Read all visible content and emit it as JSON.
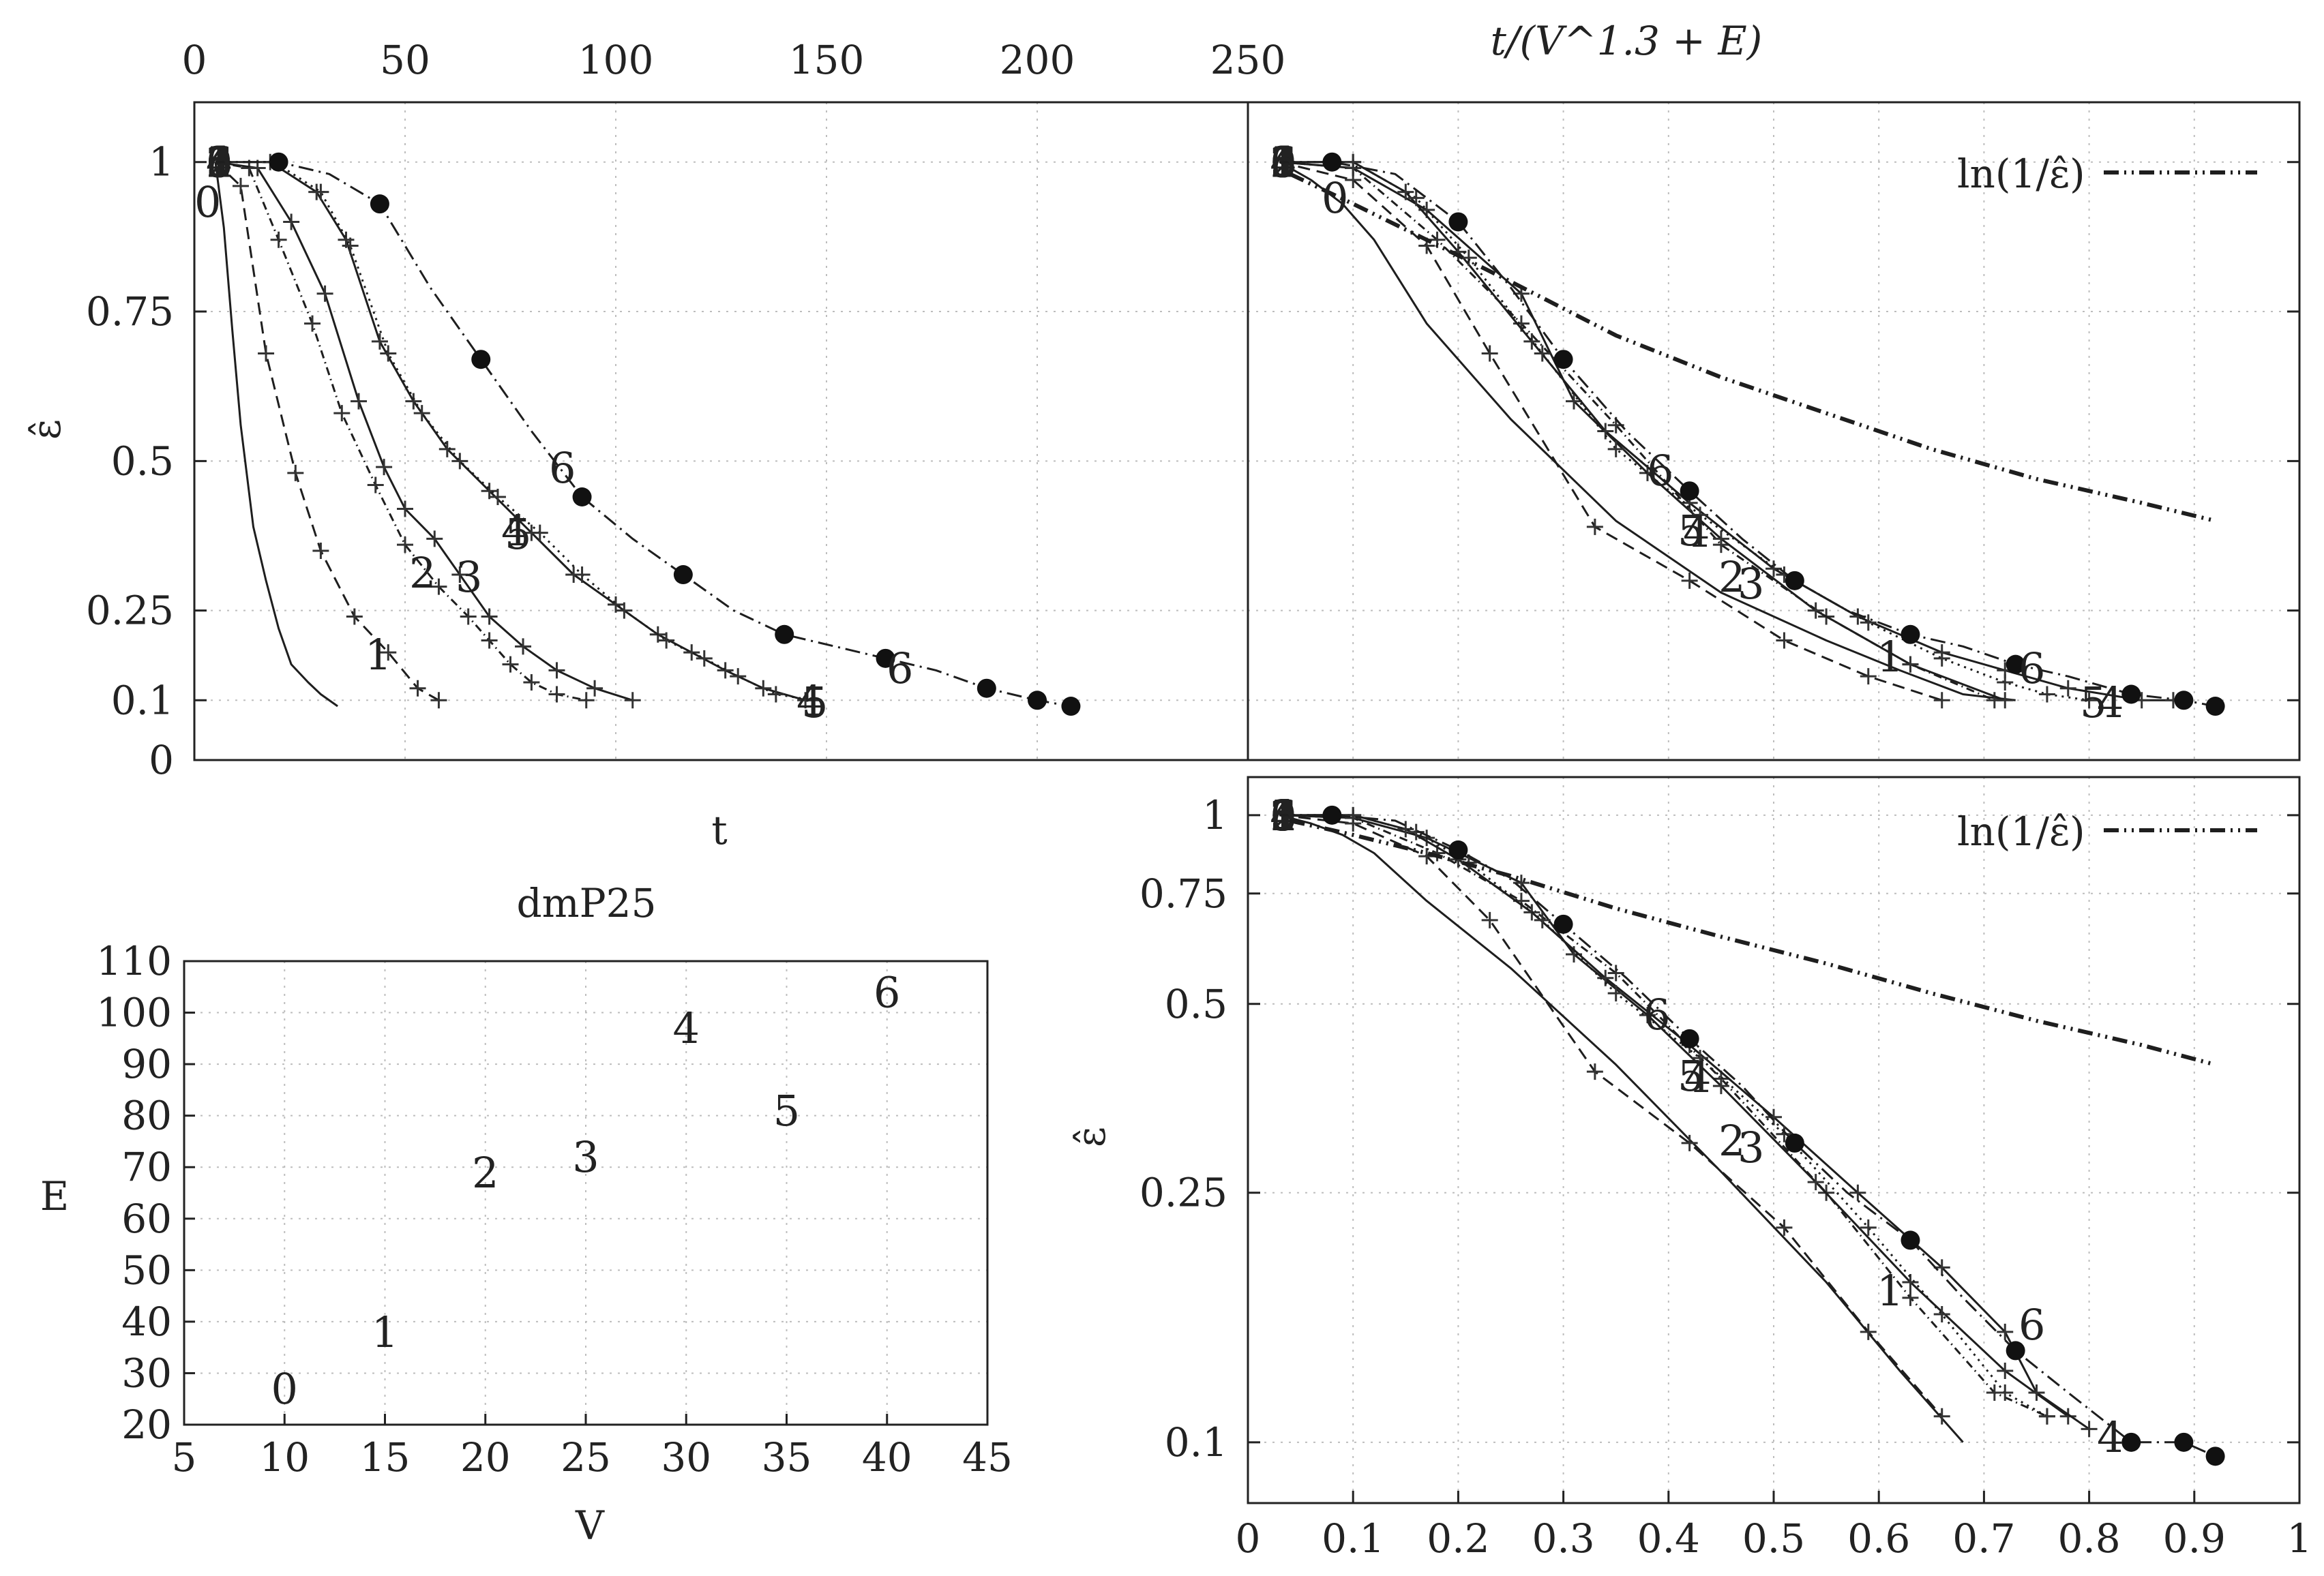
{
  "chart_data": [
    {
      "id": "top-left",
      "type": "line",
      "xlabel": "t",
      "ylabel": "ε̂",
      "top_axis_ticks": [
        "0",
        "50",
        "100",
        "150",
        "200",
        "250"
      ],
      "xlim": [
        0,
        250
      ],
      "ylim": [
        0,
        1.1
      ],
      "yticks": [
        "0",
        "0.1",
        "0.25",
        "0.5",
        "0.75",
        "1"
      ],
      "series": [
        {
          "name": "0",
          "dash": "",
          "marker": "",
          "x": [
            5,
            7,
            9,
            11,
            14,
            17,
            20,
            23,
            27,
            30,
            34
          ],
          "y": [
            1,
            0.89,
            0.72,
            0.56,
            0.39,
            0.3,
            0.22,
            0.16,
            0.13,
            0.11,
            0.09
          ]
        },
        {
          "name": "1",
          "dash": "18 10",
          "marker": "plus",
          "x": [
            5,
            11,
            17,
            24,
            30,
            38,
            46,
            53,
            58
          ],
          "y": [
            1,
            0.96,
            0.68,
            0.48,
            0.35,
            0.24,
            0.18,
            0.12,
            0.1
          ]
        },
        {
          "name": "2",
          "dash": "12 6 2 6",
          "marker": "plus",
          "x": [
            5,
            13,
            20,
            28,
            35,
            43,
            50,
            58,
            65,
            70,
            75,
            80,
            86,
            93
          ],
          "y": [
            1,
            0.99,
            0.87,
            0.73,
            0.58,
            0.46,
            0.36,
            0.29,
            0.24,
            0.2,
            0.16,
            0.13,
            0.11,
            0.1
          ]
        },
        {
          "name": "3",
          "dash": "",
          "marker": "plus",
          "x": [
            5,
            15,
            23,
            31,
            39,
            45,
            50,
            57,
            63,
            70,
            78,
            86,
            95,
            104
          ],
          "y": [
            1,
            0.99,
            0.9,
            0.78,
            0.6,
            0.49,
            0.42,
            0.37,
            0.31,
            0.24,
            0.19,
            0.15,
            0.12,
            0.1
          ]
        },
        {
          "name": "4",
          "dash": "",
          "marker": "plus",
          "x": [
            5,
            18,
            29,
            36,
            44,
            52,
            60,
            70,
            80,
            90,
            100,
            110,
            118,
            126,
            135,
            145
          ],
          "y": [
            1,
            1,
            0.95,
            0.87,
            0.7,
            0.6,
            0.52,
            0.45,
            0.38,
            0.31,
            0.26,
            0.21,
            0.18,
            0.15,
            0.12,
            0.1
          ]
        },
        {
          "name": "5",
          "dash": "3 7",
          "marker": "plus",
          "x": [
            5,
            19,
            30,
            37,
            46,
            54,
            63,
            72,
            82,
            92,
            102,
            112,
            121,
            129,
            138,
            147
          ],
          "y": [
            1,
            1,
            0.95,
            0.86,
            0.68,
            0.58,
            0.5,
            0.44,
            0.38,
            0.31,
            0.25,
            0.2,
            0.17,
            0.14,
            0.11,
            0.1
          ]
        },
        {
          "name": "6",
          "dash": "22 8 3 8",
          "marker": "dot",
          "x": [
            5,
            20,
            32,
            44,
            56,
            68,
            80,
            92,
            104,
            116,
            128,
            140,
            152,
            164,
            176,
            188,
            200,
            208
          ],
          "y": [
            1,
            1,
            0.98,
            0.93,
            0.79,
            0.67,
            0.55,
            0.44,
            0.37,
            0.31,
            0.25,
            0.21,
            0.19,
            0.17,
            0.15,
            0.12,
            0.1,
            0.09
          ]
        }
      ]
    },
    {
      "id": "top-right",
      "type": "line",
      "xlabel": "t/(V^1.3 + E)",
      "ylabel": "ε̂",
      "xlim": [
        0,
        1
      ],
      "ylim": [
        0,
        1.1
      ],
      "yticks": [
        "0.1",
        "0.25",
        "0.5",
        "0.75",
        "1"
      ],
      "legend": [
        {
          "label": "ln(1/ε̂)",
          "dash": "22 8 3 8 3 8",
          "position": "top-right"
        }
      ],
      "series": [
        {
          "name": "0",
          "dash": "",
          "marker": "",
          "x": [
            0.03,
            0.06,
            0.09,
            0.12,
            0.17,
            0.25,
            0.35,
            0.45,
            0.55,
            0.62,
            0.68,
            0.73
          ],
          "y": [
            1,
            0.97,
            0.93,
            0.87,
            0.73,
            0.57,
            0.4,
            0.28,
            0.2,
            0.15,
            0.11,
            0.1
          ]
        },
        {
          "name": "1",
          "dash": "18 10",
          "marker": "plus",
          "x": [
            0.03,
            0.1,
            0.17,
            0.23,
            0.33,
            0.42,
            0.51,
            0.59,
            0.66
          ],
          "y": [
            1,
            0.97,
            0.86,
            0.68,
            0.39,
            0.3,
            0.2,
            0.14,
            0.1
          ]
        },
        {
          "name": "2",
          "dash": "12 6 2 6",
          "marker": "plus",
          "x": [
            0.03,
            0.1,
            0.18,
            0.26,
            0.35,
            0.45,
            0.55,
            0.63,
            0.71
          ],
          "y": [
            1,
            0.99,
            0.87,
            0.73,
            0.56,
            0.36,
            0.24,
            0.16,
            0.1
          ]
        },
        {
          "name": "3",
          "dash": "",
          "marker": "plus",
          "x": [
            0.03,
            0.1,
            0.17,
            0.26,
            0.31,
            0.38,
            0.45,
            0.54,
            0.63,
            0.72
          ],
          "y": [
            1,
            0.99,
            0.92,
            0.78,
            0.6,
            0.48,
            0.37,
            0.25,
            0.16,
            0.1
          ]
        },
        {
          "name": "4",
          "dash": "",
          "marker": "plus",
          "x": [
            0.03,
            0.1,
            0.15,
            0.2,
            0.27,
            0.34,
            0.42,
            0.5,
            0.58,
            0.66,
            0.72,
            0.78,
            0.85,
            0.88
          ],
          "y": [
            1,
            1,
            0.95,
            0.85,
            0.7,
            0.55,
            0.43,
            0.32,
            0.24,
            0.18,
            0.15,
            0.12,
            0.1,
            0.1
          ]
        },
        {
          "name": "5",
          "dash": "3 7",
          "marker": "plus",
          "x": [
            0.03,
            0.1,
            0.16,
            0.21,
            0.28,
            0.35,
            0.43,
            0.51,
            0.59,
            0.66,
            0.72,
            0.76,
            0.8
          ],
          "y": [
            1,
            1,
            0.94,
            0.84,
            0.68,
            0.52,
            0.41,
            0.31,
            0.23,
            0.17,
            0.13,
            0.11,
            0.1
          ]
        },
        {
          "name": "6",
          "dash": "22 8 3 8",
          "marker": "dot",
          "x": [
            0.03,
            0.08,
            0.14,
            0.2,
            0.25,
            0.3,
            0.36,
            0.42,
            0.47,
            0.52,
            0.57,
            0.63,
            0.68,
            0.73,
            0.78,
            0.84,
            0.89,
            0.92
          ],
          "y": [
            1,
            1,
            0.98,
            0.9,
            0.79,
            0.67,
            0.55,
            0.45,
            0.37,
            0.3,
            0.25,
            0.21,
            0.19,
            0.16,
            0.14,
            0.11,
            0.1,
            0.09
          ]
        },
        {
          "name": "ln(1/ε̂)",
          "dash": "22 8 3 8 3 8",
          "marker": "",
          "thick": true,
          "x": [
            0.04,
            0.1,
            0.17,
            0.25,
            0.35,
            0.45,
            0.55,
            0.65,
            0.75,
            0.85,
            0.92
          ],
          "y": [
            0.98,
            0.93,
            0.87,
            0.8,
            0.71,
            0.64,
            0.58,
            0.52,
            0.47,
            0.43,
            0.4
          ]
        }
      ]
    },
    {
      "id": "bottom-left",
      "type": "scatter",
      "title": "dmP25",
      "xlabel": "V",
      "ylabel": "E",
      "xlim": [
        5,
        45
      ],
      "ylim": [
        20,
        110
      ],
      "xticks": [
        "5",
        "10",
        "15",
        "20",
        "25",
        "30",
        "35",
        "40",
        "45"
      ],
      "yticks": [
        "20",
        "30",
        "40",
        "50",
        "60",
        "70",
        "80",
        "90",
        "100",
        "110"
      ],
      "points": [
        {
          "label": "0",
          "V": 10,
          "E": 27
        },
        {
          "label": "1",
          "V": 15,
          "E": 38
        },
        {
          "label": "2",
          "V": 20,
          "E": 69
        },
        {
          "label": "3",
          "V": 25,
          "E": 72
        },
        {
          "label": "4",
          "V": 30,
          "E": 97
        },
        {
          "label": "5",
          "V": 35,
          "E": 81
        },
        {
          "label": "6",
          "V": 40,
          "E": 104
        }
      ]
    },
    {
      "id": "bottom-right",
      "type": "line",
      "ylabel": "ε̂",
      "yscale": "log",
      "xlim": [
        0,
        1
      ],
      "ylim": [
        0.08,
        1.15
      ],
      "xticks": [
        "0",
        "0.1",
        "0.2",
        "0.3",
        "0.4",
        "0.5",
        "0.6",
        "0.7",
        "0.8",
        "0.9",
        "1"
      ],
      "yticks": [
        "0.1",
        "0.25",
        "0.5",
        "0.75",
        "1"
      ],
      "legend": [
        {
          "label": "ln(1/ε̂)",
          "dash": "22 8 3 8 3 8",
          "position": "top-right"
        }
      ],
      "series": [
        {
          "name": "0",
          "dash": "",
          "marker": "",
          "x": [
            0.03,
            0.06,
            0.09,
            0.12,
            0.17,
            0.25,
            0.35,
            0.45,
            0.55,
            0.62,
            0.68
          ],
          "y": [
            1,
            0.97,
            0.93,
            0.87,
            0.73,
            0.57,
            0.4,
            0.27,
            0.18,
            0.13,
            0.1
          ]
        },
        {
          "name": "1",
          "dash": "18 10",
          "marker": "plus",
          "x": [
            0.03,
            0.1,
            0.17,
            0.23,
            0.33,
            0.42,
            0.51,
            0.59,
            0.66
          ],
          "y": [
            1,
            0.97,
            0.86,
            0.68,
            0.39,
            0.3,
            0.22,
            0.15,
            0.11
          ]
        },
        {
          "name": "2",
          "dash": "12 6 2 6",
          "marker": "plus",
          "x": [
            0.03,
            0.1,
            0.18,
            0.26,
            0.35,
            0.45,
            0.55,
            0.63,
            0.71,
            0.76
          ],
          "y": [
            1,
            0.99,
            0.87,
            0.73,
            0.56,
            0.38,
            0.25,
            0.17,
            0.12,
            0.11
          ]
        },
        {
          "name": "3",
          "dash": "",
          "marker": "plus",
          "x": [
            0.03,
            0.1,
            0.17,
            0.26,
            0.31,
            0.38,
            0.45,
            0.54,
            0.63,
            0.72,
            0.78
          ],
          "y": [
            1,
            0.99,
            0.92,
            0.78,
            0.6,
            0.48,
            0.37,
            0.26,
            0.18,
            0.13,
            0.11
          ]
        },
        {
          "name": "4",
          "dash": "",
          "marker": "plus",
          "x": [
            0.03,
            0.1,
            0.15,
            0.2,
            0.27,
            0.34,
            0.42,
            0.5,
            0.58,
            0.66,
            0.72,
            0.75,
            0.8
          ],
          "y": [
            1,
            1,
            0.95,
            0.85,
            0.7,
            0.55,
            0.43,
            0.33,
            0.25,
            0.19,
            0.15,
            0.12,
            0.105
          ]
        },
        {
          "name": "5",
          "dash": "3 7",
          "marker": "plus",
          "x": [
            0.03,
            0.1,
            0.16,
            0.21,
            0.28,
            0.35,
            0.43,
            0.51,
            0.59,
            0.66,
            0.72,
            0.76
          ],
          "y": [
            1,
            1,
            0.94,
            0.84,
            0.68,
            0.52,
            0.41,
            0.31,
            0.22,
            0.16,
            0.12,
            0.11
          ]
        },
        {
          "name": "6",
          "dash": "22 8 3 8",
          "marker": "dot",
          "x": [
            0.03,
            0.08,
            0.14,
            0.2,
            0.25,
            0.3,
            0.36,
            0.42,
            0.47,
            0.52,
            0.57,
            0.63,
            0.68,
            0.73,
            0.78,
            0.84,
            0.89,
            0.92
          ],
          "y": [
            1,
            1,
            0.98,
            0.88,
            0.79,
            0.67,
            0.55,
            0.44,
            0.37,
            0.3,
            0.25,
            0.21,
            0.17,
            0.14,
            0.12,
            0.1,
            0.1,
            0.095
          ]
        },
        {
          "name": "ln(1/ε̂)",
          "dash": "22 8 3 8 3 8",
          "marker": "",
          "thick": true,
          "x": [
            0.04,
            0.1,
            0.17,
            0.25,
            0.35,
            0.45,
            0.55,
            0.65,
            0.75,
            0.85,
            0.92
          ],
          "y": [
            0.98,
            0.93,
            0.87,
            0.8,
            0.71,
            0.64,
            0.58,
            0.52,
            0.47,
            0.43,
            0.4
          ]
        }
      ]
    }
  ]
}
